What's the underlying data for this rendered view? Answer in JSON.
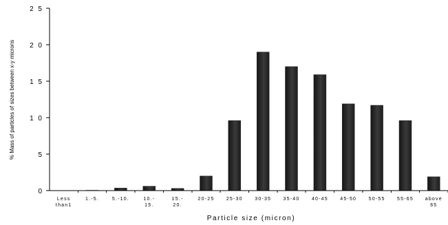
{
  "chart_data": {
    "type": "bar",
    "title": "",
    "xlabel": "Particle size (micron)",
    "ylabel": "% Mass of particles of sizes between x-y microns",
    "categories": [
      [
        "Less",
        "than1"
      ],
      [
        "1.-5."
      ],
      [
        "5.-10."
      ],
      [
        "10.-",
        "15."
      ],
      [
        "15.-",
        "20."
      ],
      [
        "20-25"
      ],
      [
        "25-30"
      ],
      [
        "30-35"
      ],
      [
        "35-40"
      ],
      [
        "40-45"
      ],
      [
        "45-50"
      ],
      [
        "50-55"
      ],
      [
        "55-65"
      ],
      [
        "above",
        "65"
      ]
    ],
    "values": [
      0,
      0.05,
      0.35,
      0.6,
      0.3,
      2.0,
      9.6,
      19.0,
      17.0,
      15.9,
      11.9,
      11.7,
      9.6,
      1.9
    ],
    "ylim": [
      0,
      25
    ],
    "yticks": [
      0,
      5,
      10,
      15,
      20,
      25
    ],
    "ytick_labels": [
      "0",
      "5",
      "1 0",
      "1 5",
      "2 0",
      "2 5"
    ],
    "grid": false,
    "legend": "none",
    "bar_color": "#2b2b2b"
  }
}
